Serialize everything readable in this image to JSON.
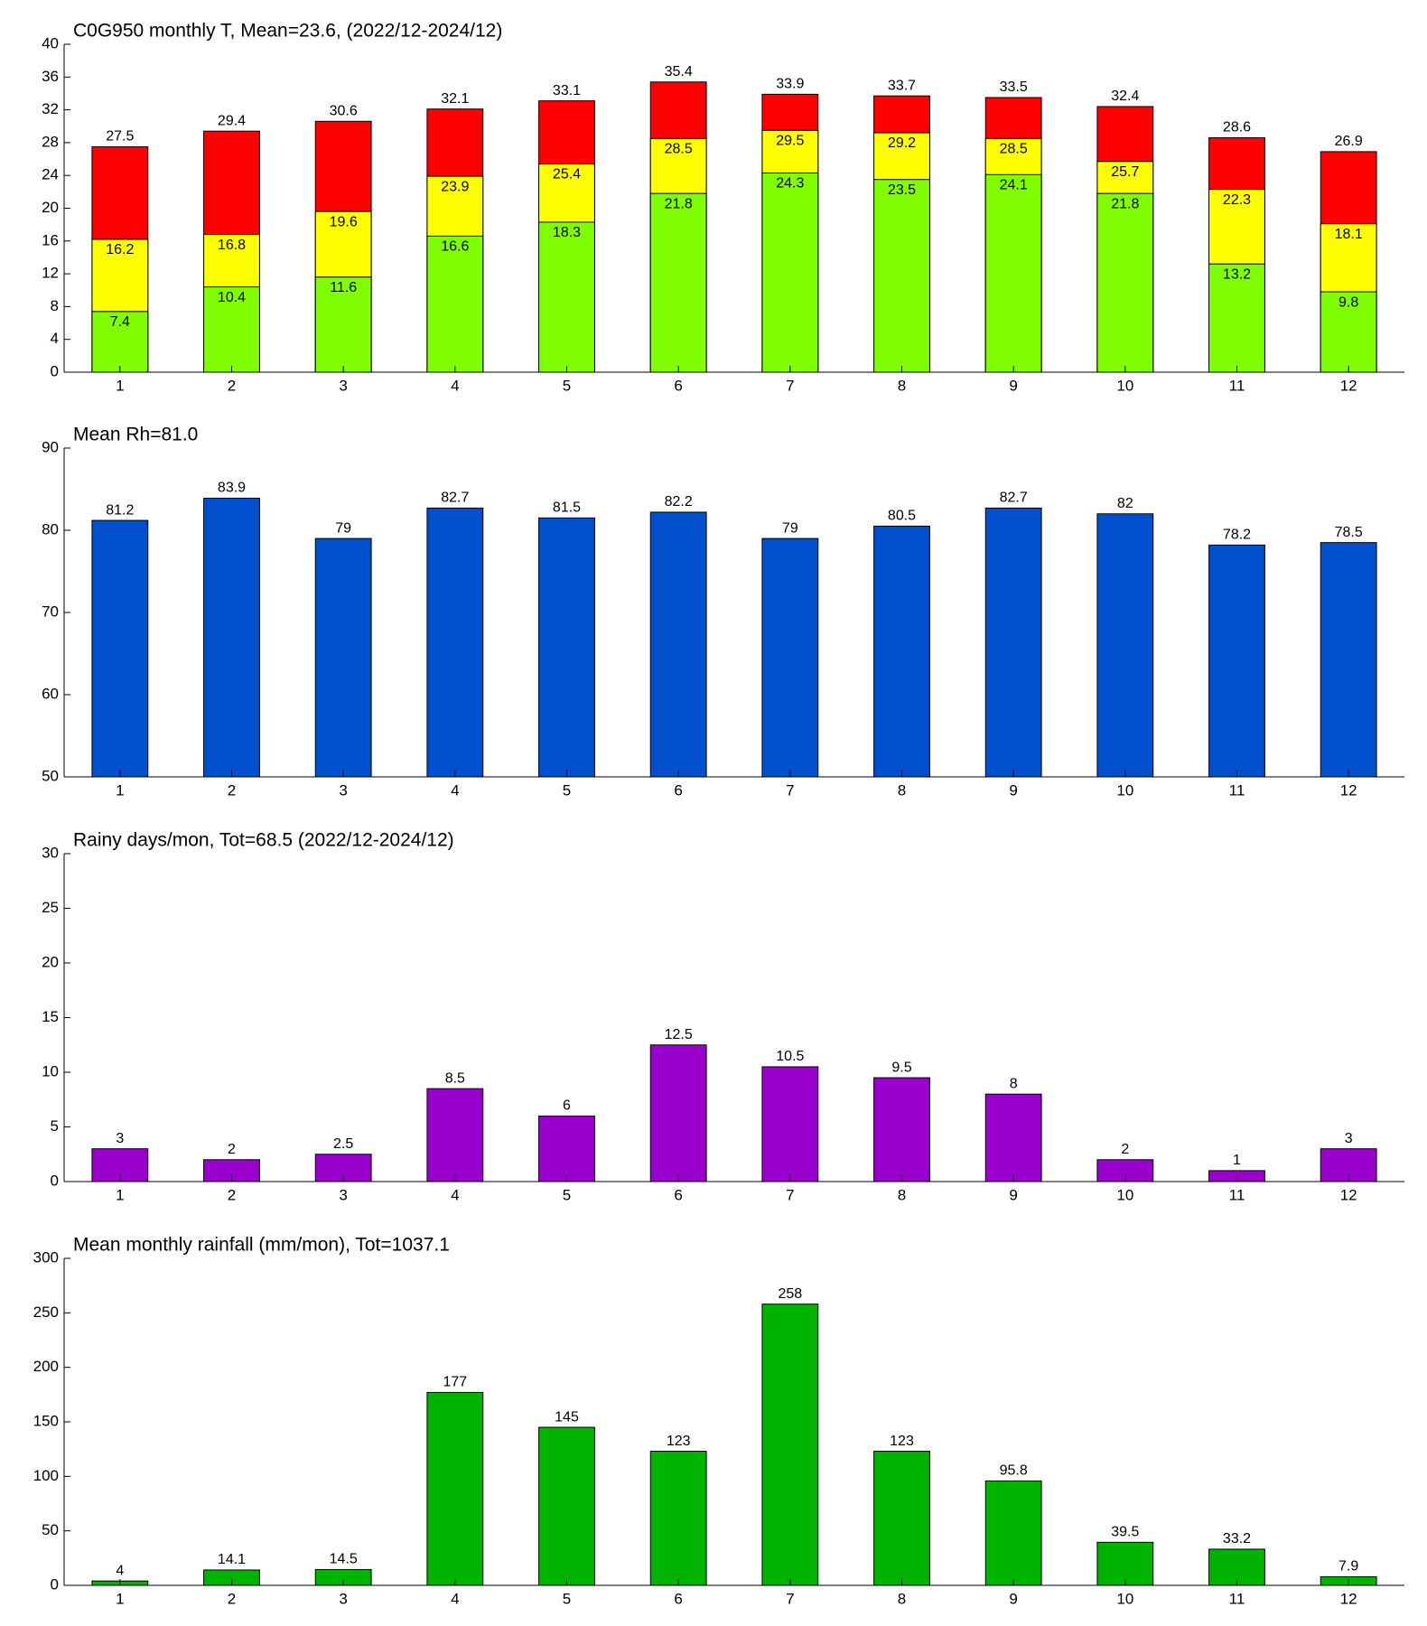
{
  "chart_data": [
    {
      "type": "bar",
      "title": "C0G950 monthly T, Mean=23.6, (2022/12-2024/12)",
      "categories": [
        "1",
        "2",
        "3",
        "4",
        "5",
        "6",
        "7",
        "8",
        "9",
        "10",
        "11",
        "12"
      ],
      "series": [
        {
          "color": "#ff0000",
          "values": [
            27.5,
            29.4,
            30.6,
            32.1,
            33.1,
            35.4,
            33.9,
            33.7,
            33.5,
            32.4,
            28.6,
            26.9
          ]
        },
        {
          "color": "#ffff00",
          "values": [
            16.2,
            16.8,
            19.6,
            23.9,
            25.4,
            28.5,
            29.5,
            29.2,
            28.5,
            25.7,
            22.3,
            18.1
          ]
        },
        {
          "color": "#80ff00",
          "values": [
            7.4,
            10.4,
            11.6,
            16.6,
            18.3,
            21.8,
            24.3,
            23.5,
            24.1,
            21.8,
            13.2,
            9.8
          ]
        }
      ],
      "ylim": [
        0,
        40
      ],
      "yticks": [
        0,
        4,
        8,
        12,
        16,
        20,
        24,
        28,
        32,
        36,
        40
      ]
    },
    {
      "type": "bar",
      "title": "Mean Rh=81.0",
      "categories": [
        "1",
        "2",
        "3",
        "4",
        "5",
        "6",
        "7",
        "8",
        "9",
        "10",
        "11",
        "12"
      ],
      "series": [
        {
          "color": "#004fcc",
          "values": [
            81.2,
            83.9,
            79,
            82.7,
            81.5,
            82.2,
            79,
            80.5,
            82.7,
            82,
            78.2,
            78.5
          ]
        }
      ],
      "ylim": [
        50,
        90
      ],
      "yticks": [
        50,
        60,
        70,
        80,
        90
      ]
    },
    {
      "type": "bar",
      "title": "Rainy days/mon, Tot=68.5 (2022/12-2024/12)",
      "categories": [
        "1",
        "2",
        "3",
        "4",
        "5",
        "6",
        "7",
        "8",
        "9",
        "10",
        "11",
        "12"
      ],
      "series": [
        {
          "color": "#9900cc",
          "values": [
            3,
            2,
            2.5,
            8.5,
            6,
            12.5,
            10.5,
            9.5,
            8,
            2,
            1,
            3
          ]
        }
      ],
      "ylim": [
        0,
        30
      ],
      "yticks": [
        0,
        5,
        10,
        15,
        20,
        25,
        30
      ]
    },
    {
      "type": "bar",
      "title": "Mean monthly rainfall (mm/mon), Tot=1037.1",
      "categories": [
        "1",
        "2",
        "3",
        "4",
        "5",
        "6",
        "7",
        "8",
        "9",
        "10",
        "11",
        "12"
      ],
      "series": [
        {
          "color": "#00b300",
          "values": [
            4,
            14.1,
            14.5,
            177,
            145,
            123,
            258,
            123,
            95.8,
            39.5,
            33.2,
            7.9
          ]
        }
      ],
      "ylim": [
        0,
        300
      ],
      "yticks": [
        0,
        50,
        100,
        150,
        200,
        250,
        300
      ]
    }
  ]
}
